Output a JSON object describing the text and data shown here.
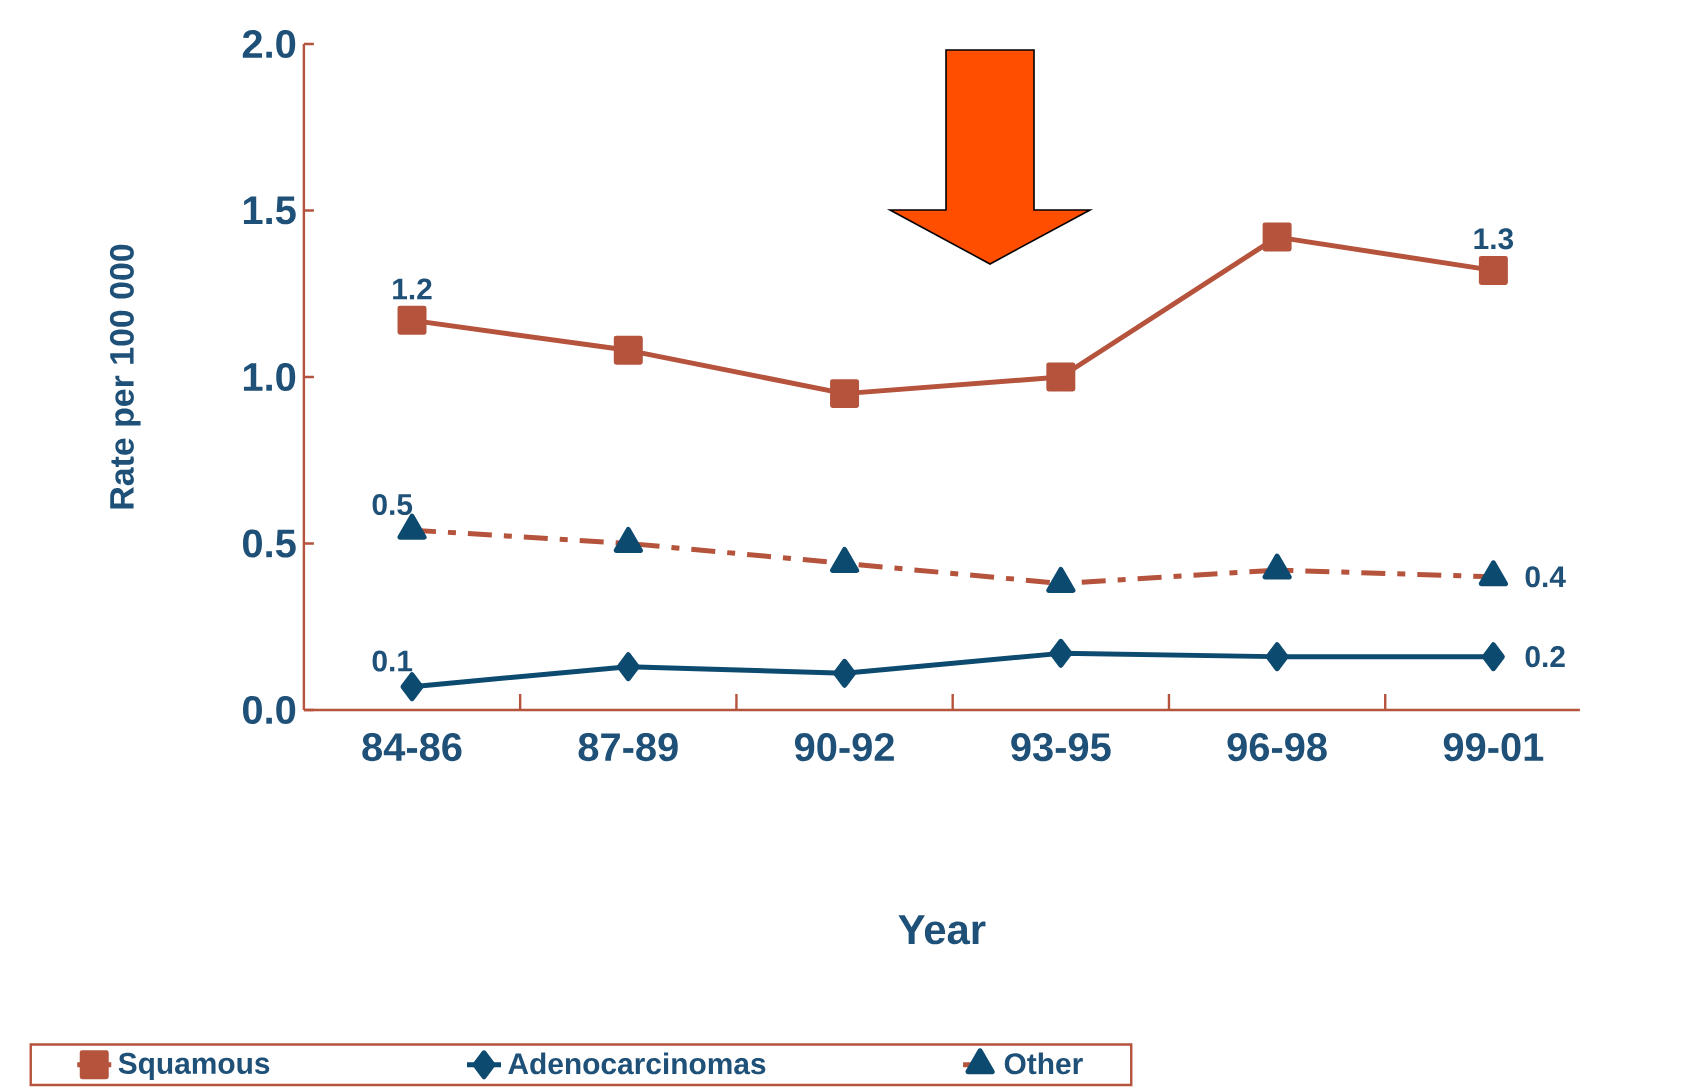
{
  "chart_data": {
    "type": "line",
    "xlabel": "Year",
    "ylabel": "Rate per 100 000",
    "categories": [
      "84-86",
      "87-89",
      "90-92",
      "93-95",
      "96-98",
      "99-01"
    ],
    "ylim": [
      0,
      2
    ],
    "yticks": [
      {
        "value": 0,
        "label": "0.0"
      },
      {
        "value": 0.5,
        "label": "0.5"
      },
      {
        "value": 1,
        "label": "1.0"
      },
      {
        "value": 1.5,
        "label": "1.5"
      },
      {
        "value": 2,
        "label": "2.0"
      }
    ],
    "series": [
      {
        "name": "Squamous",
        "color": "#b5533c",
        "marker": "square",
        "line_style": "solid",
        "values": [
          1.17,
          1.08,
          0.95,
          1.0,
          1.42,
          1.32
        ],
        "value_labels": [
          "1.2",
          null,
          null,
          null,
          null,
          "1.3"
        ]
      },
      {
        "name": "Adenocarcinomas",
        "color": "#0d4a70",
        "marker": "diamond",
        "line_style": "solid",
        "values": [
          0.07,
          0.13,
          0.11,
          0.17,
          0.16,
          0.16
        ],
        "value_labels": [
          "0.1",
          null,
          null,
          null,
          null,
          "0.2"
        ]
      },
      {
        "name": "Other",
        "color": "#b5533c",
        "colors": [
          "#0d4a70",
          "#0d4a70",
          "#0d4a70",
          "#0d4a70",
          "#0d4a70",
          "#0d4a70"
        ],
        "marker": "triangle",
        "line_style": "dashed",
        "values": [
          0.54,
          0.5,
          0.44,
          0.38,
          0.42,
          0.4
        ],
        "value_labels": [
          "0.5",
          null,
          null,
          null,
          null,
          "0.4"
        ]
      }
    ],
    "grid": false,
    "legend": "bottom"
  }
}
